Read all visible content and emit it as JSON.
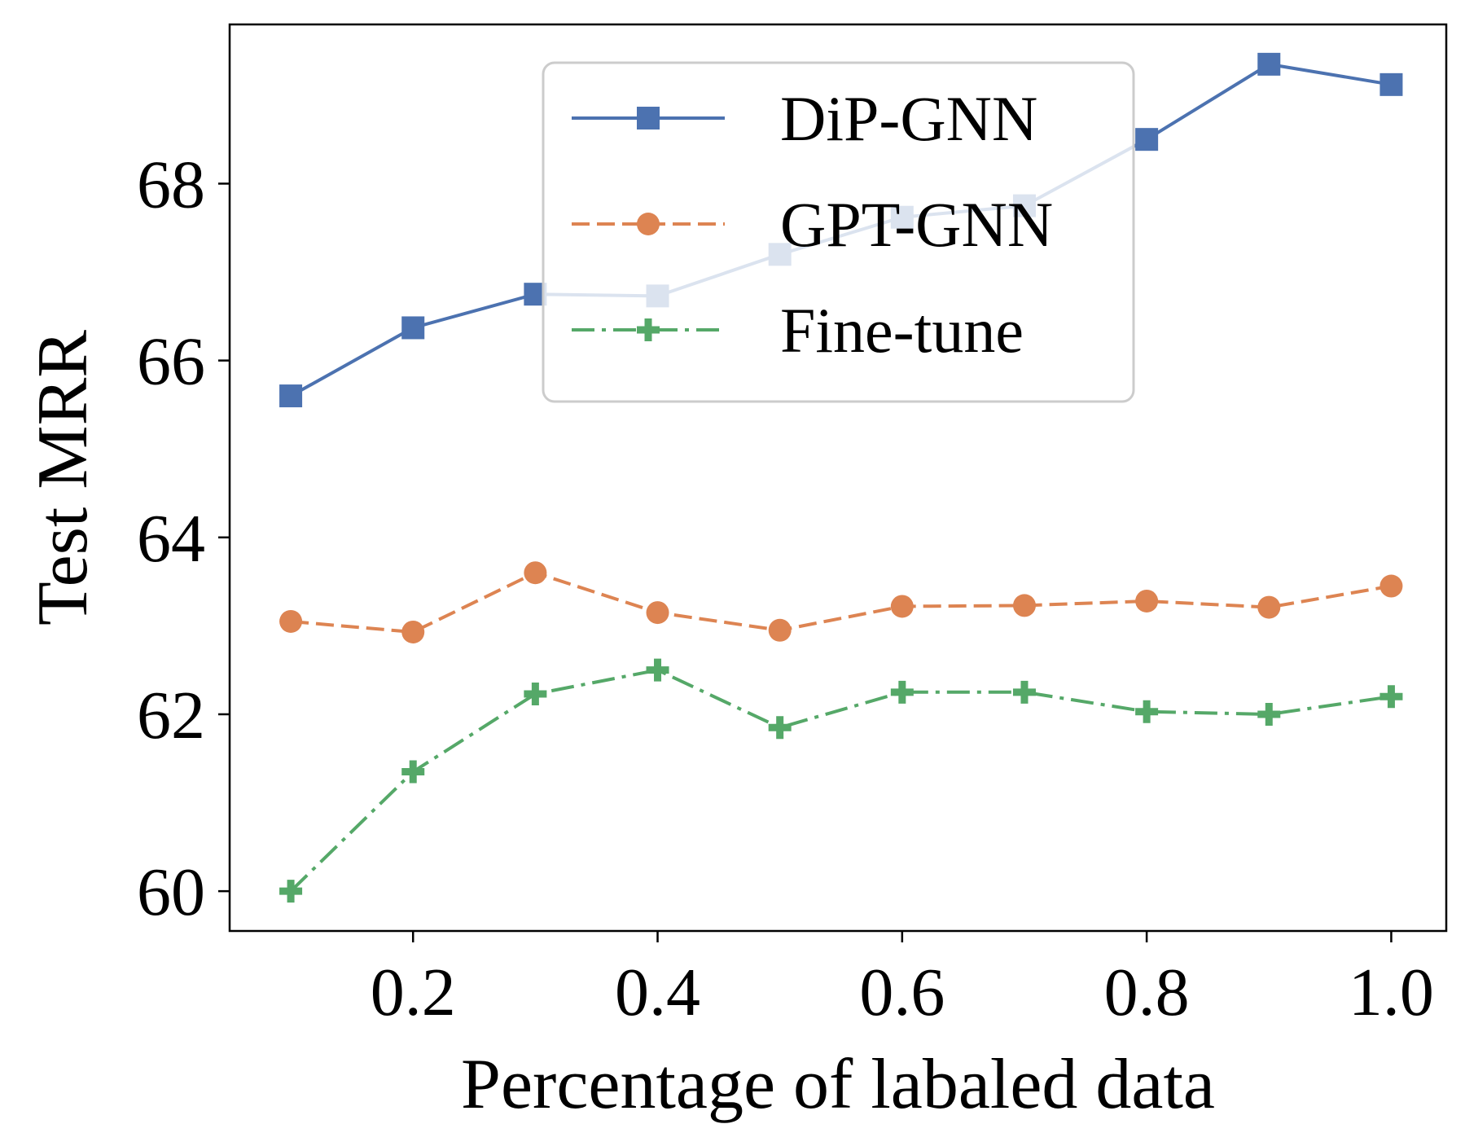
{
  "chart_data": {
    "type": "line",
    "title": "",
    "xlabel": "Percentage of labaled data",
    "ylabel": "Test MRR",
    "xlim": [
      0.05,
      1.045
    ],
    "ylim": [
      59.55,
      69.8
    ],
    "xticks": [
      0.2,
      0.4,
      0.6,
      0.8,
      1.0
    ],
    "xtick_labels": [
      "0.2",
      "0.4",
      "0.6",
      "0.8",
      "1.0"
    ],
    "yticks": [
      60,
      62,
      64,
      66,
      68
    ],
    "ytick_labels": [
      "60",
      "62",
      "64",
      "66",
      "68"
    ],
    "x": [
      0.1,
      0.2,
      0.3,
      0.4,
      0.5,
      0.6,
      0.7,
      0.8,
      0.9,
      1.0
    ],
    "series": [
      {
        "name": "DiP-GNN",
        "color": "#4c72b0",
        "marker": "square",
        "linestyle": "solid",
        "values": [
          65.6,
          66.37,
          66.75,
          66.73,
          67.2,
          67.62,
          67.75,
          68.5,
          69.35,
          69.12
        ]
      },
      {
        "name": "GPT-GNN",
        "color": "#dd8452",
        "marker": "circle",
        "linestyle": "dashed",
        "values": [
          63.05,
          62.93,
          63.6,
          63.15,
          62.95,
          63.22,
          63.23,
          63.28,
          63.21,
          63.45
        ]
      },
      {
        "name": "Fine-tune",
        "color": "#55a868",
        "marker": "plus",
        "linestyle": "dashdot",
        "values": [
          60.0,
          61.35,
          62.23,
          62.5,
          61.85,
          62.25,
          62.25,
          62.03,
          62.0,
          62.2
        ]
      }
    ],
    "grid": false,
    "legend": {
      "position": "top-center"
    }
  }
}
